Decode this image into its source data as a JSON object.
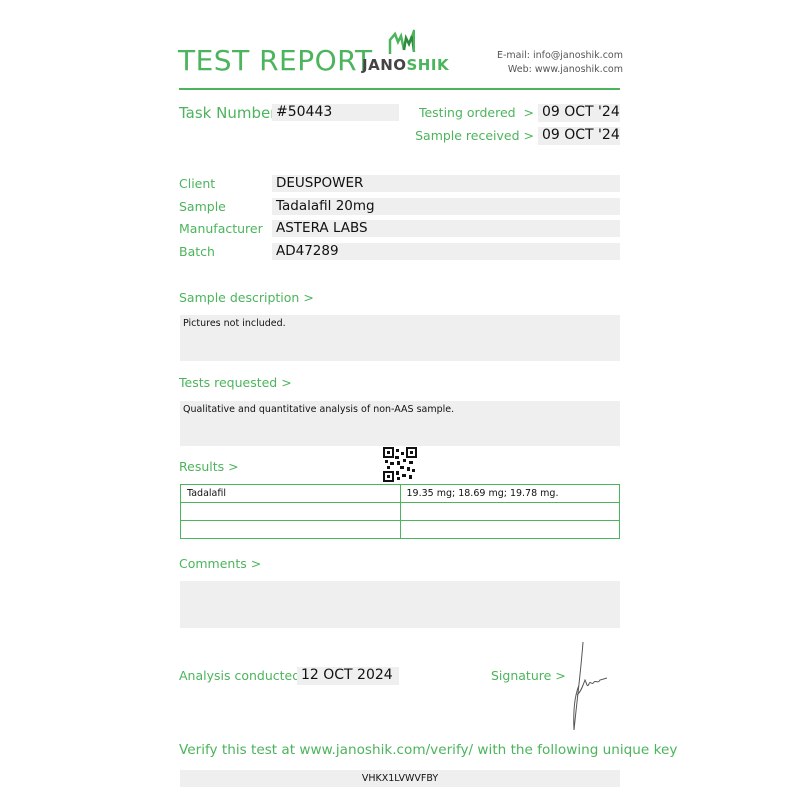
{
  "header": {
    "title": "TEST REPORT",
    "logo_text_dark": "JANO",
    "logo_text_green": "SHIK",
    "email": "E-mail: info@janoshik.com",
    "web": "Web: www.janoshik.com"
  },
  "task": {
    "label": "Task Number",
    "value": "#50443"
  },
  "dates": {
    "ordered_label": "Testing ordered  >",
    "ordered_value": "09 OCT '24",
    "received_label": "Sample received >",
    "received_value": "09 OCT '24"
  },
  "info": [
    {
      "label": "Client",
      "value": "DEUSPOWER"
    },
    {
      "label": "Sample",
      "value": "Tadalafil 20mg"
    },
    {
      "label": "Manufacturer",
      "value": "ASTERA LABS"
    },
    {
      "label": "Batch",
      "value": "AD47289"
    }
  ],
  "sample_description": {
    "label": "Sample description >",
    "text": "Pictures not included."
  },
  "tests_requested": {
    "label": "Tests requested >",
    "text": "Qualitative and quantitative analysis of non-AAS sample."
  },
  "results": {
    "label": "Results >",
    "rows": [
      [
        "Tadalafil",
        "19.35 mg; 18.69 mg; 19.78 mg."
      ],
      [
        "",
        ""
      ],
      [
        "",
        ""
      ]
    ]
  },
  "comments": {
    "label": "Comments >",
    "text": ""
  },
  "analysis": {
    "label": "Analysis conducted >",
    "value": "12 OCT 2024"
  },
  "signature": {
    "label": "Signature >"
  },
  "verify": {
    "text": "Verify this test at www.janoshik.com/verify/ with the following unique key",
    "key": "VHKX1LVWVFBY"
  },
  "colors": {
    "accent": "#4cb45c",
    "field_bg": "#efefef"
  }
}
